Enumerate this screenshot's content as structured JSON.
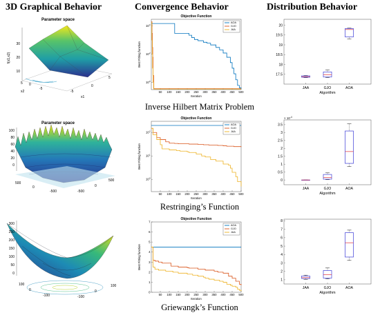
{
  "headers": {
    "col1": "3D Graphical Behavior",
    "col2": "Convergence Behavior",
    "col3": "Distribution Behavior"
  },
  "rows": [
    {
      "caption": "Inverse Hilbert Matrix Problem",
      "surface": {
        "title": "Parameter space",
        "zlabel": "f(x1,x2)",
        "xlabel": "x1",
        "ylabel": "x2",
        "zticks": [
          "10",
          "20",
          "30"
        ],
        "x1ticks": [
          "-5",
          "0",
          "5"
        ],
        "x2ticks": [
          "-5",
          "0",
          "5"
        ]
      },
      "convergence": {
        "title": "Objective Function",
        "xlabel": "Iteration",
        "ylabel": "Best Fitting function",
        "yticks": [
          "10^4",
          "10^2",
          "10^0"
        ],
        "xticks": [
          "50",
          "100",
          "150",
          "200",
          "250",
          "300",
          "350",
          "400",
          "450",
          "500"
        ]
      },
      "distribution": {
        "xlabel": "Algorithm",
        "yticks": [
          "17.5",
          "18",
          "18.5",
          "19",
          "19.5",
          "20"
        ]
      }
    },
    {
      "caption": "Restringing’s Function",
      "surface": {
        "title": "Parameter space",
        "zticks": [
          "0",
          "20",
          "40",
          "60",
          "80",
          "100"
        ],
        "xticks": [
          "-500",
          "0",
          "500"
        ]
      },
      "convergence": {
        "title": "Objective Function",
        "xlabel": "Iteration",
        "ylabel": "Best Fitting function",
        "yticks": [
          "10^2",
          "10^1",
          "10^0"
        ],
        "xticks": [
          "50",
          "100",
          "150",
          "200",
          "250",
          "300",
          "350",
          "400",
          "450",
          "500"
        ]
      },
      "distribution": {
        "xlabel": "Algorithm",
        "exponent": "× 10^-4",
        "yticks": [
          "0",
          "0.5",
          "1",
          "1.5",
          "2",
          "2.5",
          "3",
          "3.5"
        ]
      }
    },
    {
      "caption": "Griewangk’s Function",
      "surface": {
        "zticks": [
          "0",
          "50",
          "100",
          "150",
          "200",
          "250",
          "300"
        ],
        "xticks": [
          "-100",
          "0",
          "100"
        ]
      },
      "convergence": {
        "title": "Objective Function",
        "xlabel": "Iteration",
        "ylabel": "Best Fitting function",
        "yticks": [
          "0",
          "1",
          "2",
          "3",
          "4",
          "5",
          "6",
          "7"
        ],
        "xticks": [
          "50",
          "100",
          "150",
          "200",
          "250",
          "300",
          "350",
          "400",
          "450",
          "500"
        ]
      },
      "distribution": {
        "xlabel": "Algorithm",
        "yticks": [
          "1",
          "2",
          "3",
          "4",
          "5",
          "6",
          "7",
          "8"
        ]
      }
    }
  ],
  "chart_data": [
    {
      "type": "line",
      "title": "Objective Function",
      "xlabel": "Iteration",
      "ylabel": "Best Fitting function",
      "yscale": "log",
      "xlim": [
        0,
        500
      ],
      "ylim": [
        0.3,
        30000
      ],
      "series": [
        {
          "name": "AOA",
          "color": "#0072BD",
          "x": [
            0,
            40,
            80,
            100,
            130,
            150,
            170,
            195,
            210,
            225,
            240,
            260,
            290,
            310,
            330,
            360,
            380,
            400,
            420,
            440,
            450,
            460,
            470,
            480,
            490,
            500
          ],
          "y": [
            15000,
            15000,
            15000,
            15000,
            3000,
            3000,
            3000,
            3000,
            2200,
            1500,
            1100,
            900,
            700,
            600,
            450,
            300,
            200,
            120,
            60,
            25,
            10,
            4,
            1.5,
            0.6,
            0.4,
            0.35
          ]
        },
        {
          "name": "GJO",
          "color": "#D95319",
          "x": [
            0,
            4,
            6,
            8,
            10,
            14,
            500
          ],
          "y": [
            20000,
            3000,
            300,
            60,
            3,
            0.35,
            0.35
          ]
        },
        {
          "name": "JAA",
          "color": "#EDB120",
          "x": [
            0,
            3,
            5,
            7,
            10,
            13,
            500
          ],
          "y": [
            18000,
            1000,
            100,
            10,
            1,
            0.33,
            0.33
          ]
        }
      ]
    },
    {
      "type": "box",
      "xlabel": "Algorithm",
      "categories": [
        "JAA",
        "GJO",
        "AOA"
      ],
      "ylim": [
        17,
        20.3
      ],
      "boxes": [
        {
          "min": 17.33,
          "q1": 17.35,
          "median": 17.38,
          "q3": 17.42,
          "max": 17.44
        },
        {
          "min": 17.33,
          "q1": 17.36,
          "median": 17.48,
          "q3": 17.62,
          "max": 17.72
        },
        {
          "min": 19.3,
          "q1": 19.4,
          "median": 19.78,
          "q3": 19.83,
          "max": 19.85
        }
      ]
    },
    {
      "type": "line",
      "title": "Objective Function",
      "xlabel": "Iteration",
      "ylabel": "Best Fitting function",
      "yscale": "log",
      "xlim": [
        0,
        500
      ],
      "ylim": [
        0.3,
        300
      ],
      "series": [
        {
          "name": "AOA",
          "color": "#0072BD",
          "x": [
            0,
            500
          ],
          "y": [
            200,
            200
          ]
        },
        {
          "name": "GJO",
          "color": "#D95319",
          "x": [
            0,
            10,
            30,
            50,
            80,
            100,
            130,
            150,
            170,
            200,
            210,
            230,
            260,
            290,
            320,
            370,
            400,
            420,
            460,
            500
          ],
          "y": [
            150,
            100,
            60,
            50,
            40,
            35,
            34,
            33,
            33,
            33,
            32,
            32,
            31,
            30,
            29,
            28,
            27,
            26,
            25,
            24
          ]
        },
        {
          "name": "JAA",
          "color": "#EDB120",
          "x": [
            0,
            10,
            30,
            50,
            60,
            100,
            140,
            160,
            200,
            210,
            250,
            280,
            300,
            330,
            360,
            400,
            430,
            440,
            450,
            470,
            480,
            500
          ],
          "y": [
            150,
            80,
            50,
            30,
            20,
            18,
            17,
            16,
            15,
            14,
            12,
            10,
            9,
            7,
            6,
            4.5,
            4,
            3,
            2,
            1.3,
            0.8,
            0.5
          ]
        }
      ]
    },
    {
      "type": "box",
      "xlabel": "Algorithm",
      "categories": [
        "JAA",
        "GJO",
        "AOA"
      ],
      "ylim": [
        -0.3,
        3.8
      ],
      "y_multiplier": "1e-4",
      "boxes": [
        {
          "min": 0,
          "q1": 0,
          "median": 0,
          "q3": 0,
          "max": 0
        },
        {
          "min": 0.02,
          "q1": 0.05,
          "median": 0.15,
          "q3": 0.35,
          "max": 0.45
        },
        {
          "min": 0.85,
          "q1": 1.05,
          "median": 1.8,
          "q3": 3.1,
          "max": 3.55
        }
      ]
    },
    {
      "type": "line",
      "title": "Objective Function",
      "xlabel": "Iteration",
      "ylabel": "Best Fitting function",
      "xlim": [
        0,
        500
      ],
      "ylim": [
        0,
        7
      ],
      "series": [
        {
          "name": "AOA",
          "color": "#0072BD",
          "x": [
            0,
            500
          ],
          "y": [
            4.5,
            4.5
          ]
        },
        {
          "name": "GJO",
          "color": "#D95319",
          "x": [
            0,
            10,
            20,
            40,
            60,
            100,
            110,
            150,
            200,
            210,
            260,
            300,
            350,
            370,
            400,
            430,
            450,
            470,
            490,
            500
          ],
          "y": [
            4.5,
            3.2,
            3.1,
            3.0,
            2.9,
            2.9,
            2.6,
            2.5,
            2.45,
            2.4,
            2.3,
            2.2,
            2.1,
            2.0,
            1.9,
            1.6,
            1.4,
            1.1,
            0.8,
            0.7
          ]
        },
        {
          "name": "JAA",
          "color": "#EDB120",
          "x": [
            0,
            10,
            20,
            40,
            80,
            120,
            150,
            200,
            230,
            260,
            290,
            300,
            320,
            350,
            380,
            400,
            420,
            440,
            450,
            470,
            480,
            490,
            500
          ],
          "y": [
            4.5,
            2.5,
            2.3,
            2.2,
            2.1,
            2.0,
            1.9,
            1.8,
            1.7,
            1.6,
            1.5,
            1.4,
            1.3,
            1.2,
            1.1,
            1.0,
            0.8,
            0.7,
            0.6,
            0.5,
            0.3,
            0.2,
            0.1
          ]
        }
      ]
    },
    {
      "type": "box",
      "xlabel": "Algorithm",
      "categories": [
        "JAA",
        "GJO",
        "AOA"
      ],
      "ylim": [
        0.5,
        8.2
      ],
      "boxes": [
        {
          "min": 1.05,
          "q1": 1.15,
          "median": 1.25,
          "q3": 1.45,
          "max": 1.55
        },
        {
          "min": 1.1,
          "q1": 1.2,
          "median": 1.6,
          "q3": 2.1,
          "max": 2.4
        },
        {
          "min": 3.3,
          "q1": 3.7,
          "median": 5.4,
          "q3": 6.6,
          "max": 6.9
        }
      ]
    }
  ]
}
